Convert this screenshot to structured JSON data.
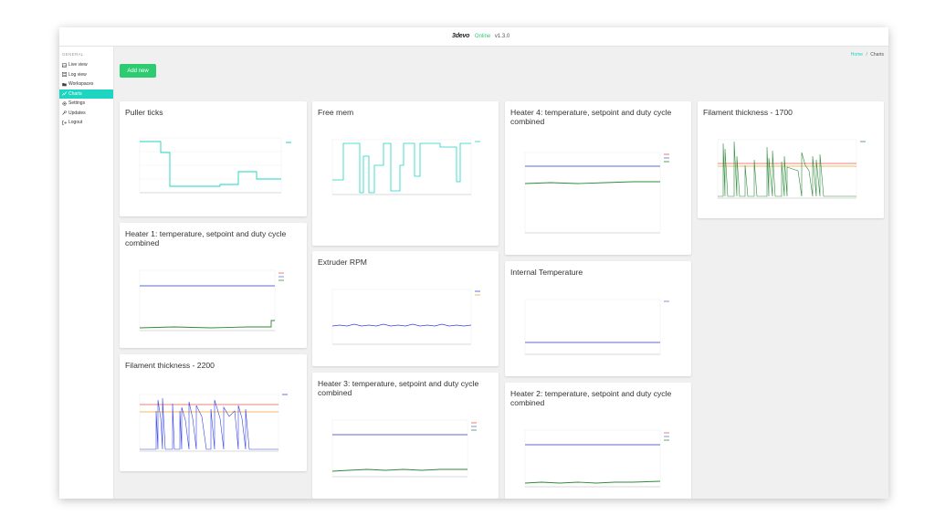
{
  "topbar": {
    "logo": "3devo",
    "status": "Online",
    "version": "v1.3.0"
  },
  "sidebar": {
    "section": "GENERAL",
    "items": [
      {
        "label": "Live view",
        "icon": "image-icon",
        "active": false
      },
      {
        "label": "Log view",
        "icon": "list-icon",
        "active": false
      },
      {
        "label": "Workspaces",
        "icon": "folder-icon",
        "active": false
      },
      {
        "label": "Charts",
        "icon": "chart-icon",
        "active": true
      },
      {
        "label": "Settings",
        "icon": "gear-icon",
        "active": false
      },
      {
        "label": "Updates",
        "icon": "wrench-icon",
        "active": false
      },
      {
        "label": "Logout",
        "icon": "logout-icon",
        "active": false
      }
    ]
  },
  "breadcrumb": {
    "home": "Home",
    "separator": "/",
    "current": "Charts"
  },
  "add_button_label": "Add new",
  "colors": {
    "accent": "#1dd5c0",
    "add_button": "#2ecc71"
  },
  "charts": [
    {
      "title": "Puller ticks",
      "type": "line"
    },
    {
      "title": "Free mem",
      "type": "line"
    },
    {
      "title": "Heater 4: temperature, setpoint and duty cycle combined",
      "type": "line"
    },
    {
      "title": "Filament thickness - 1700",
      "type": "line"
    },
    {
      "title": "Heater 1: temperature, setpoint and duty cycle combined",
      "type": "line"
    },
    {
      "title": "Extruder RPM",
      "type": "line"
    },
    {
      "title": "Internal Temperature",
      "type": "line"
    },
    {
      "title": "Filament thickness - 2200",
      "type": "line"
    },
    {
      "title": "Heater 3: temperature, setpoint and duty cycle combined",
      "type": "line"
    },
    {
      "title": "Heater 2: temperature, setpoint and duty cycle combined",
      "type": "line"
    }
  ]
}
